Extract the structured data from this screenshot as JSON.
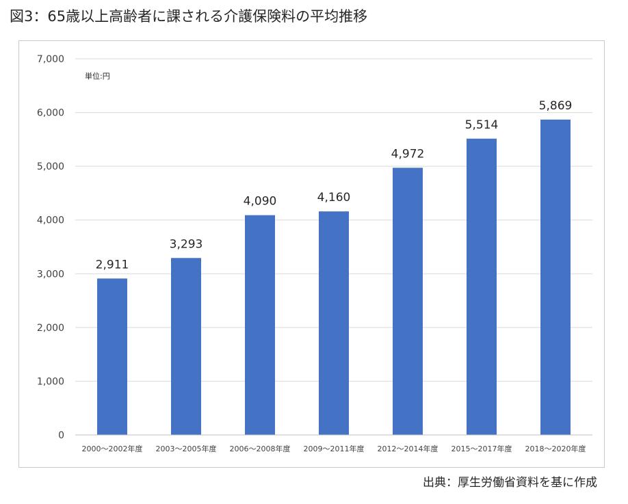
{
  "title": "図3：65歳以上高齢者に課される介護保険料の平均推移",
  "source": "出典：厚生労働省資料を基に作成",
  "chart_data": {
    "type": "bar",
    "unit_label": "単位:円",
    "categories": [
      "2000～2002年度",
      "2003～2005年度",
      "2006～2008年度",
      "2009～2011年度",
      "2012～2014年度",
      "2015～2017年度",
      "2018～2020年度"
    ],
    "values": [
      2911,
      3293,
      4090,
      4160,
      4972,
      5514,
      5869
    ],
    "value_labels": [
      "2,911",
      "3,293",
      "4,090",
      "4,160",
      "4,972",
      "5,514",
      "5,869"
    ],
    "yticks": [
      0,
      1000,
      2000,
      3000,
      4000,
      5000,
      6000,
      7000
    ],
    "ytick_labels": [
      "0",
      "1,000",
      "2,000",
      "3,000",
      "4,000",
      "5,000",
      "6,000",
      "7,000"
    ],
    "ylim": [
      0,
      7000
    ],
    "grid": true,
    "bar_color": "#4472C4"
  }
}
